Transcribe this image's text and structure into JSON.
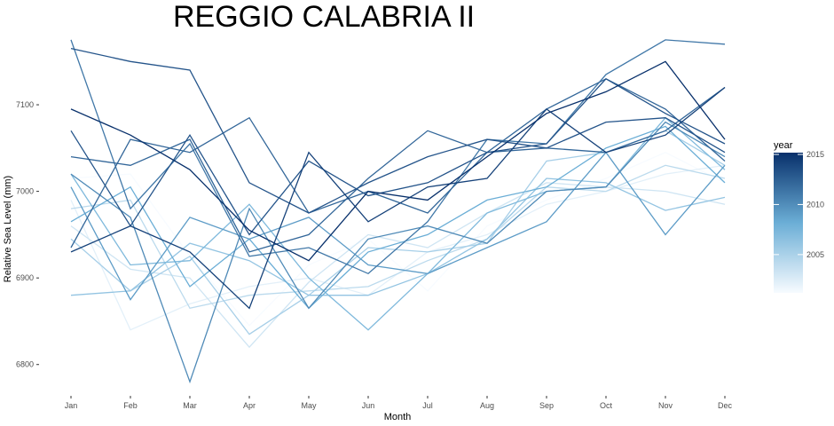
{
  "chart_data": {
    "type": "line",
    "title": "REGGIO CALABRIA II",
    "xlabel": "Month",
    "ylabel": "Relative Sea Level (mm)",
    "categories": [
      "Jan",
      "Feb",
      "Mar",
      "Apr",
      "May",
      "Jun",
      "Jul",
      "Aug",
      "Sep",
      "Oct",
      "Nov",
      "Dec"
    ],
    "yticks": [
      6800,
      6900,
      7000,
      7100
    ],
    "ylim": [
      6770,
      7180
    ],
    "grid": false,
    "legend": {
      "title": "year",
      "position": "right",
      "min": 2001,
      "max": 2015,
      "ticks": [
        2005,
        2010,
        2015
      ],
      "color_low": "#f7fbff",
      "color_high": "#08306b"
    },
    "series": [
      {
        "year": 2001,
        "values": [
          7015,
          7020,
          6925,
          6845,
          6915,
          6945,
          6885,
          6960,
          6990,
          7015,
          7045,
          7010
        ]
      },
      {
        "year": 2002,
        "values": [
          6990,
          6840,
          6870,
          6890,
          6900,
          6880,
          6930,
          6950,
          6985,
          7000,
          7020,
          7030
        ]
      },
      {
        "year": 2003,
        "values": [
          6960,
          6910,
          6900,
          6820,
          6895,
          6950,
          6935,
          6975,
          7010,
          7005,
          7000,
          6985
        ]
      },
      {
        "year": 2004,
        "values": [
          6980,
          6990,
          6865,
          6880,
          6885,
          6890,
          6920,
          6945,
          7005,
          7000,
          7030,
          7015
        ]
      },
      {
        "year": 2005,
        "values": [
          6945,
          6885,
          6925,
          6835,
          6880,
          6935,
          6930,
          6940,
          7035,
          7045,
          7070,
          7030
        ]
      },
      {
        "year": 2006,
        "values": [
          6880,
          6885,
          6940,
          6920,
          6880,
          6880,
          6905,
          6945,
          7015,
          7010,
          6978,
          6993
        ]
      },
      {
        "year": 2007,
        "values": [
          7020,
          6915,
          6920,
          6985,
          6900,
          6840,
          6905,
          6975,
          7000,
          7005,
          7085,
          7025
        ]
      },
      {
        "year": 2008,
        "values": [
          6965,
          7005,
          6890,
          6945,
          6865,
          6930,
          6950,
          6990,
          7005,
          7050,
          7075,
          7010
        ]
      },
      {
        "year": 2009,
        "values": [
          7005,
          6875,
          6970,
          6945,
          6970,
          6915,
          6905,
          6935,
          6965,
          7045,
          6950,
          7030
        ]
      },
      {
        "year": 2010,
        "values": [
          7020,
          6970,
          6780,
          6980,
          6865,
          6945,
          6960,
          6940,
          7000,
          7005,
          7080,
          7040
        ]
      },
      {
        "year": 2011,
        "values": [
          7175,
          6980,
          7055,
          6925,
          6935,
          6905,
          6965,
          7060,
          7055,
          7135,
          7175,
          7170
        ]
      },
      {
        "year": 2012,
        "values": [
          7040,
          7030,
          7060,
          6930,
          6950,
          7015,
          7070,
          7045,
          7095,
          7130,
          7095,
          7035
        ]
      },
      {
        "year": 2013,
        "values": [
          7165,
          7150,
          7140,
          7010,
          6975,
          7010,
          7040,
          7060,
          7050,
          7080,
          7085,
          7045
        ]
      },
      {
        "year": 2014,
        "values": [
          6930,
          6960,
          6930,
          6865,
          7045,
          6965,
          7005,
          7015,
          7095,
          7045,
          7065,
          7120
        ]
      },
      {
        "year": 2015,
        "values": [
          7095,
          7065,
          7025,
          6955,
          6920,
          7000,
          6990,
          7040,
          7090,
          7115,
          7150,
          7060
        ]
      },
      {
        "year": 2013,
        "values": [
          7070,
          6960,
          7065,
          6950,
          7035,
          6995,
          7010,
          7045,
          7055,
          7130,
          7090,
          7055
        ]
      },
      {
        "year": 2012,
        "values": [
          6935,
          7060,
          7045,
          7085,
          6975,
          7000,
          6975,
          7045,
          7050,
          7045,
          7070,
          7120
        ]
      }
    ]
  }
}
